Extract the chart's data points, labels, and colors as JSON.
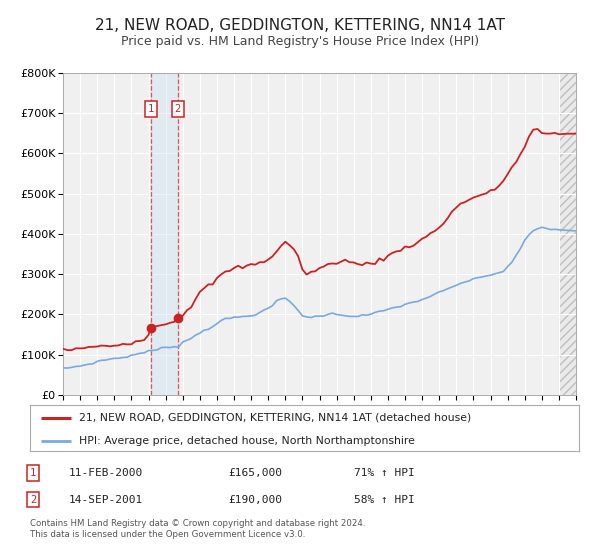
{
  "title": "21, NEW ROAD, GEDDINGTON, KETTERING, NN14 1AT",
  "subtitle": "Price paid vs. HM Land Registry's House Price Index (HPI)",
  "title_fontsize": 11,
  "subtitle_fontsize": 9,
  "legend_line1": "21, NEW ROAD, GEDDINGTON, KETTERING, NN14 1AT (detached house)",
  "legend_line2": "HPI: Average price, detached house, North Northamptonshire",
  "footnote": "Contains HM Land Registry data © Crown copyright and database right 2024.\nThis data is licensed under the Open Government Licence v3.0.",
  "purchase1_date": 2000.12,
  "purchase1_label": "11-FEB-2000",
  "purchase1_price": "£165,000",
  "purchase1_hpi": "71% ↑ HPI",
  "purchase2_date": 2001.71,
  "purchase2_label": "14-SEP-2001",
  "purchase2_price": "£190,000",
  "purchase2_hpi": "58% ↑ HPI",
  "purchase1_value": 165000,
  "purchase2_value": 190000,
  "red_color": "#cc2222",
  "blue_color": "#7aaadd",
  "background_color": "#f0f0f0",
  "grid_color": "#ffffff",
  "shade_color": "#cce0f5",
  "hatch_color": "#dddddd",
  "ylim": [
    0,
    800000
  ],
  "xlim_start": 1995,
  "xlim_end": 2025,
  "hpi_years": [
    1995.0,
    1995.25,
    1995.5,
    1995.75,
    1996.0,
    1996.25,
    1996.5,
    1996.75,
    1997.0,
    1997.25,
    1997.5,
    1997.75,
    1998.0,
    1998.25,
    1998.5,
    1998.75,
    1999.0,
    1999.25,
    1999.5,
    1999.75,
    2000.0,
    2000.25,
    2000.5,
    2000.75,
    2001.0,
    2001.25,
    2001.5,
    2001.75,
    2002.0,
    2002.25,
    2002.5,
    2002.75,
    2003.0,
    2003.25,
    2003.5,
    2003.75,
    2004.0,
    2004.25,
    2004.5,
    2004.75,
    2005.0,
    2005.25,
    2005.5,
    2005.75,
    2006.0,
    2006.25,
    2006.5,
    2006.75,
    2007.0,
    2007.25,
    2007.5,
    2007.75,
    2008.0,
    2008.25,
    2008.5,
    2008.75,
    2009.0,
    2009.25,
    2009.5,
    2009.75,
    2010.0,
    2010.25,
    2010.5,
    2010.75,
    2011.0,
    2011.25,
    2011.5,
    2011.75,
    2012.0,
    2012.25,
    2012.5,
    2012.75,
    2013.0,
    2013.25,
    2013.5,
    2013.75,
    2014.0,
    2014.25,
    2014.5,
    2014.75,
    2015.0,
    2015.25,
    2015.5,
    2015.75,
    2016.0,
    2016.25,
    2016.5,
    2016.75,
    2017.0,
    2017.25,
    2017.5,
    2017.75,
    2018.0,
    2018.25,
    2018.5,
    2018.75,
    2019.0,
    2019.25,
    2019.5,
    2019.75,
    2020.0,
    2020.25,
    2020.5,
    2020.75,
    2021.0,
    2021.25,
    2021.5,
    2021.75,
    2022.0,
    2022.25,
    2022.5,
    2022.75,
    2023.0,
    2023.25,
    2023.5,
    2023.75,
    2024.0,
    2024.5,
    2025.0
  ],
  "hpi_vals": [
    65000,
    67000,
    68000,
    70000,
    72000,
    74000,
    76000,
    79000,
    82000,
    85000,
    87000,
    89000,
    90000,
    91000,
    93000,
    95000,
    98000,
    100000,
    103000,
    106000,
    108000,
    110000,
    112000,
    115000,
    118000,
    119000,
    120000,
    121000,
    130000,
    136000,
    141000,
    147000,
    155000,
    160000,
    165000,
    170000,
    178000,
    183000,
    188000,
    190000,
    192000,
    193000,
    194000,
    196000,
    198000,
    200000,
    204000,
    208000,
    215000,
    222000,
    232000,
    238000,
    240000,
    232000,
    222000,
    210000,
    198000,
    193000,
    192000,
    194000,
    196000,
    198000,
    200000,
    201000,
    200000,
    199000,
    198000,
    196000,
    195000,
    196000,
    197000,
    198000,
    200000,
    203000,
    206000,
    209000,
    212000,
    215000,
    218000,
    221000,
    224000,
    227000,
    230000,
    233000,
    237000,
    241000,
    245000,
    249000,
    254000,
    258000,
    263000,
    267000,
    272000,
    277000,
    281000,
    283000,
    286000,
    290000,
    293000,
    296000,
    298000,
    300000,
    303000,
    308000,
    318000,
    330000,
    345000,
    363000,
    382000,
    398000,
    408000,
    412000,
    415000,
    413000,
    412000,
    411000,
    410000,
    409000,
    408000
  ],
  "price_years": [
    1995.0,
    1995.25,
    1995.5,
    1995.75,
    1996.0,
    1996.25,
    1996.5,
    1996.75,
    1997.0,
    1997.25,
    1997.5,
    1997.75,
    1998.0,
    1998.25,
    1998.5,
    1998.75,
    1999.0,
    1999.25,
    1999.5,
    1999.75,
    2000.0,
    2000.12,
    2000.25,
    2000.5,
    2000.75,
    2001.0,
    2001.25,
    2001.5,
    2001.71,
    2001.75,
    2002.0,
    2002.25,
    2002.5,
    2002.75,
    2003.0,
    2003.25,
    2003.5,
    2003.75,
    2004.0,
    2004.25,
    2004.5,
    2004.75,
    2005.0,
    2005.25,
    2005.5,
    2005.75,
    2006.0,
    2006.25,
    2006.5,
    2006.75,
    2007.0,
    2007.25,
    2007.5,
    2007.75,
    2008.0,
    2008.25,
    2008.5,
    2008.75,
    2009.0,
    2009.25,
    2009.5,
    2009.75,
    2010.0,
    2010.25,
    2010.5,
    2010.75,
    2011.0,
    2011.25,
    2011.5,
    2011.75,
    2012.0,
    2012.25,
    2012.5,
    2012.75,
    2013.0,
    2013.25,
    2013.5,
    2013.75,
    2014.0,
    2014.25,
    2014.5,
    2014.75,
    2015.0,
    2015.25,
    2015.5,
    2015.75,
    2016.0,
    2016.25,
    2016.5,
    2016.75,
    2017.0,
    2017.25,
    2017.5,
    2017.75,
    2018.0,
    2018.25,
    2018.5,
    2018.75,
    2019.0,
    2019.25,
    2019.5,
    2019.75,
    2020.0,
    2020.25,
    2020.5,
    2020.75,
    2021.0,
    2021.25,
    2021.5,
    2021.75,
    2022.0,
    2022.25,
    2022.5,
    2022.75,
    2023.0,
    2023.25,
    2023.5,
    2023.75,
    2024.0,
    2024.5,
    2025.0
  ],
  "price_vals": [
    110000,
    112000,
    113000,
    114000,
    115000,
    116000,
    117000,
    118000,
    119000,
    120000,
    121000,
    122000,
    123000,
    124000,
    126000,
    128000,
    130000,
    133000,
    137000,
    141000,
    148000,
    165000,
    168000,
    172000,
    176000,
    178000,
    180000,
    182000,
    190000,
    192000,
    200000,
    210000,
    222000,
    238000,
    254000,
    262000,
    270000,
    278000,
    288000,
    296000,
    304000,
    310000,
    314000,
    316000,
    318000,
    320000,
    322000,
    325000,
    328000,
    332000,
    338000,
    346000,
    356000,
    370000,
    378000,
    374000,
    362000,
    342000,
    310000,
    302000,
    304000,
    308000,
    314000,
    318000,
    322000,
    326000,
    330000,
    334000,
    334000,
    330000,
    326000,
    324000,
    324000,
    326000,
    328000,
    330000,
    334000,
    338000,
    344000,
    350000,
    356000,
    362000,
    366000,
    370000,
    374000,
    380000,
    386000,
    392000,
    400000,
    408000,
    416000,
    428000,
    440000,
    454000,
    466000,
    474000,
    480000,
    486000,
    490000,
    494000,
    496000,
    500000,
    504000,
    510000,
    520000,
    534000,
    548000,
    564000,
    580000,
    598000,
    614000,
    642000,
    660000,
    658000,
    650000,
    648000,
    646000,
    648000,
    648000,
    650000,
    648000
  ]
}
